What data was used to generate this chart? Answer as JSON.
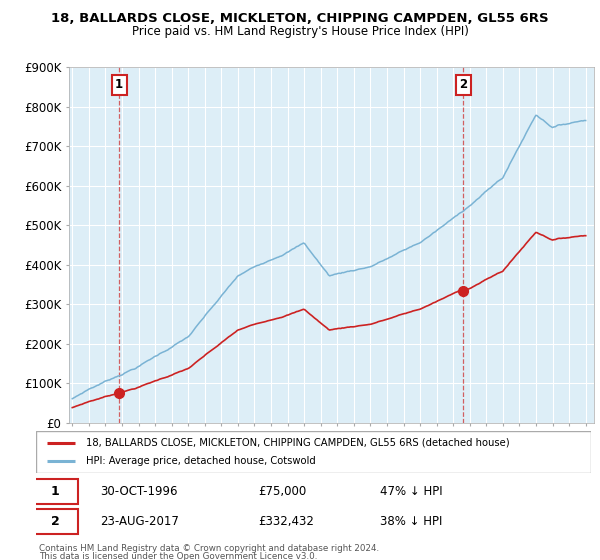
{
  "title": "18, BALLARDS CLOSE, MICKLETON, CHIPPING CAMPDEN, GL55 6RS",
  "subtitle": "Price paid vs. HM Land Registry's House Price Index (HPI)",
  "hpi_color": "#7ab3d4",
  "hpi_fill_color": "#ddeef7",
  "price_color": "#cc2222",
  "legend_line1": "18, BALLARDS CLOSE, MICKLETON, CHIPPING CAMPDEN, GL55 6RS (detached house)",
  "legend_line2": "HPI: Average price, detached house, Cotswold",
  "purchase1_label": "1",
  "purchase1_date": "30-OCT-1996",
  "purchase1_price_str": "£75,000",
  "purchase1_pct": "47% ↓ HPI",
  "purchase1_year": 1996.83,
  "purchase1_value": 75000,
  "purchase2_label": "2",
  "purchase2_date": "23-AUG-2017",
  "purchase2_price_str": "£332,432",
  "purchase2_pct": "38% ↓ HPI",
  "purchase2_year": 2017.62,
  "purchase2_value": 332432,
  "footnote1": "Contains HM Land Registry data © Crown copyright and database right 2024.",
  "footnote2": "This data is licensed under the Open Government Licence v3.0.",
  "yticks": [
    0,
    100000,
    200000,
    300000,
    400000,
    500000,
    600000,
    700000,
    800000,
    900000
  ],
  "ylabels": [
    "£0",
    "£100K",
    "£200K",
    "£300K",
    "£400K",
    "£500K",
    "£600K",
    "£700K",
    "£800K",
    "£900K"
  ],
  "xmin": 1993.8,
  "xmax": 2025.5,
  "ymin": 0,
  "ymax": 900000
}
